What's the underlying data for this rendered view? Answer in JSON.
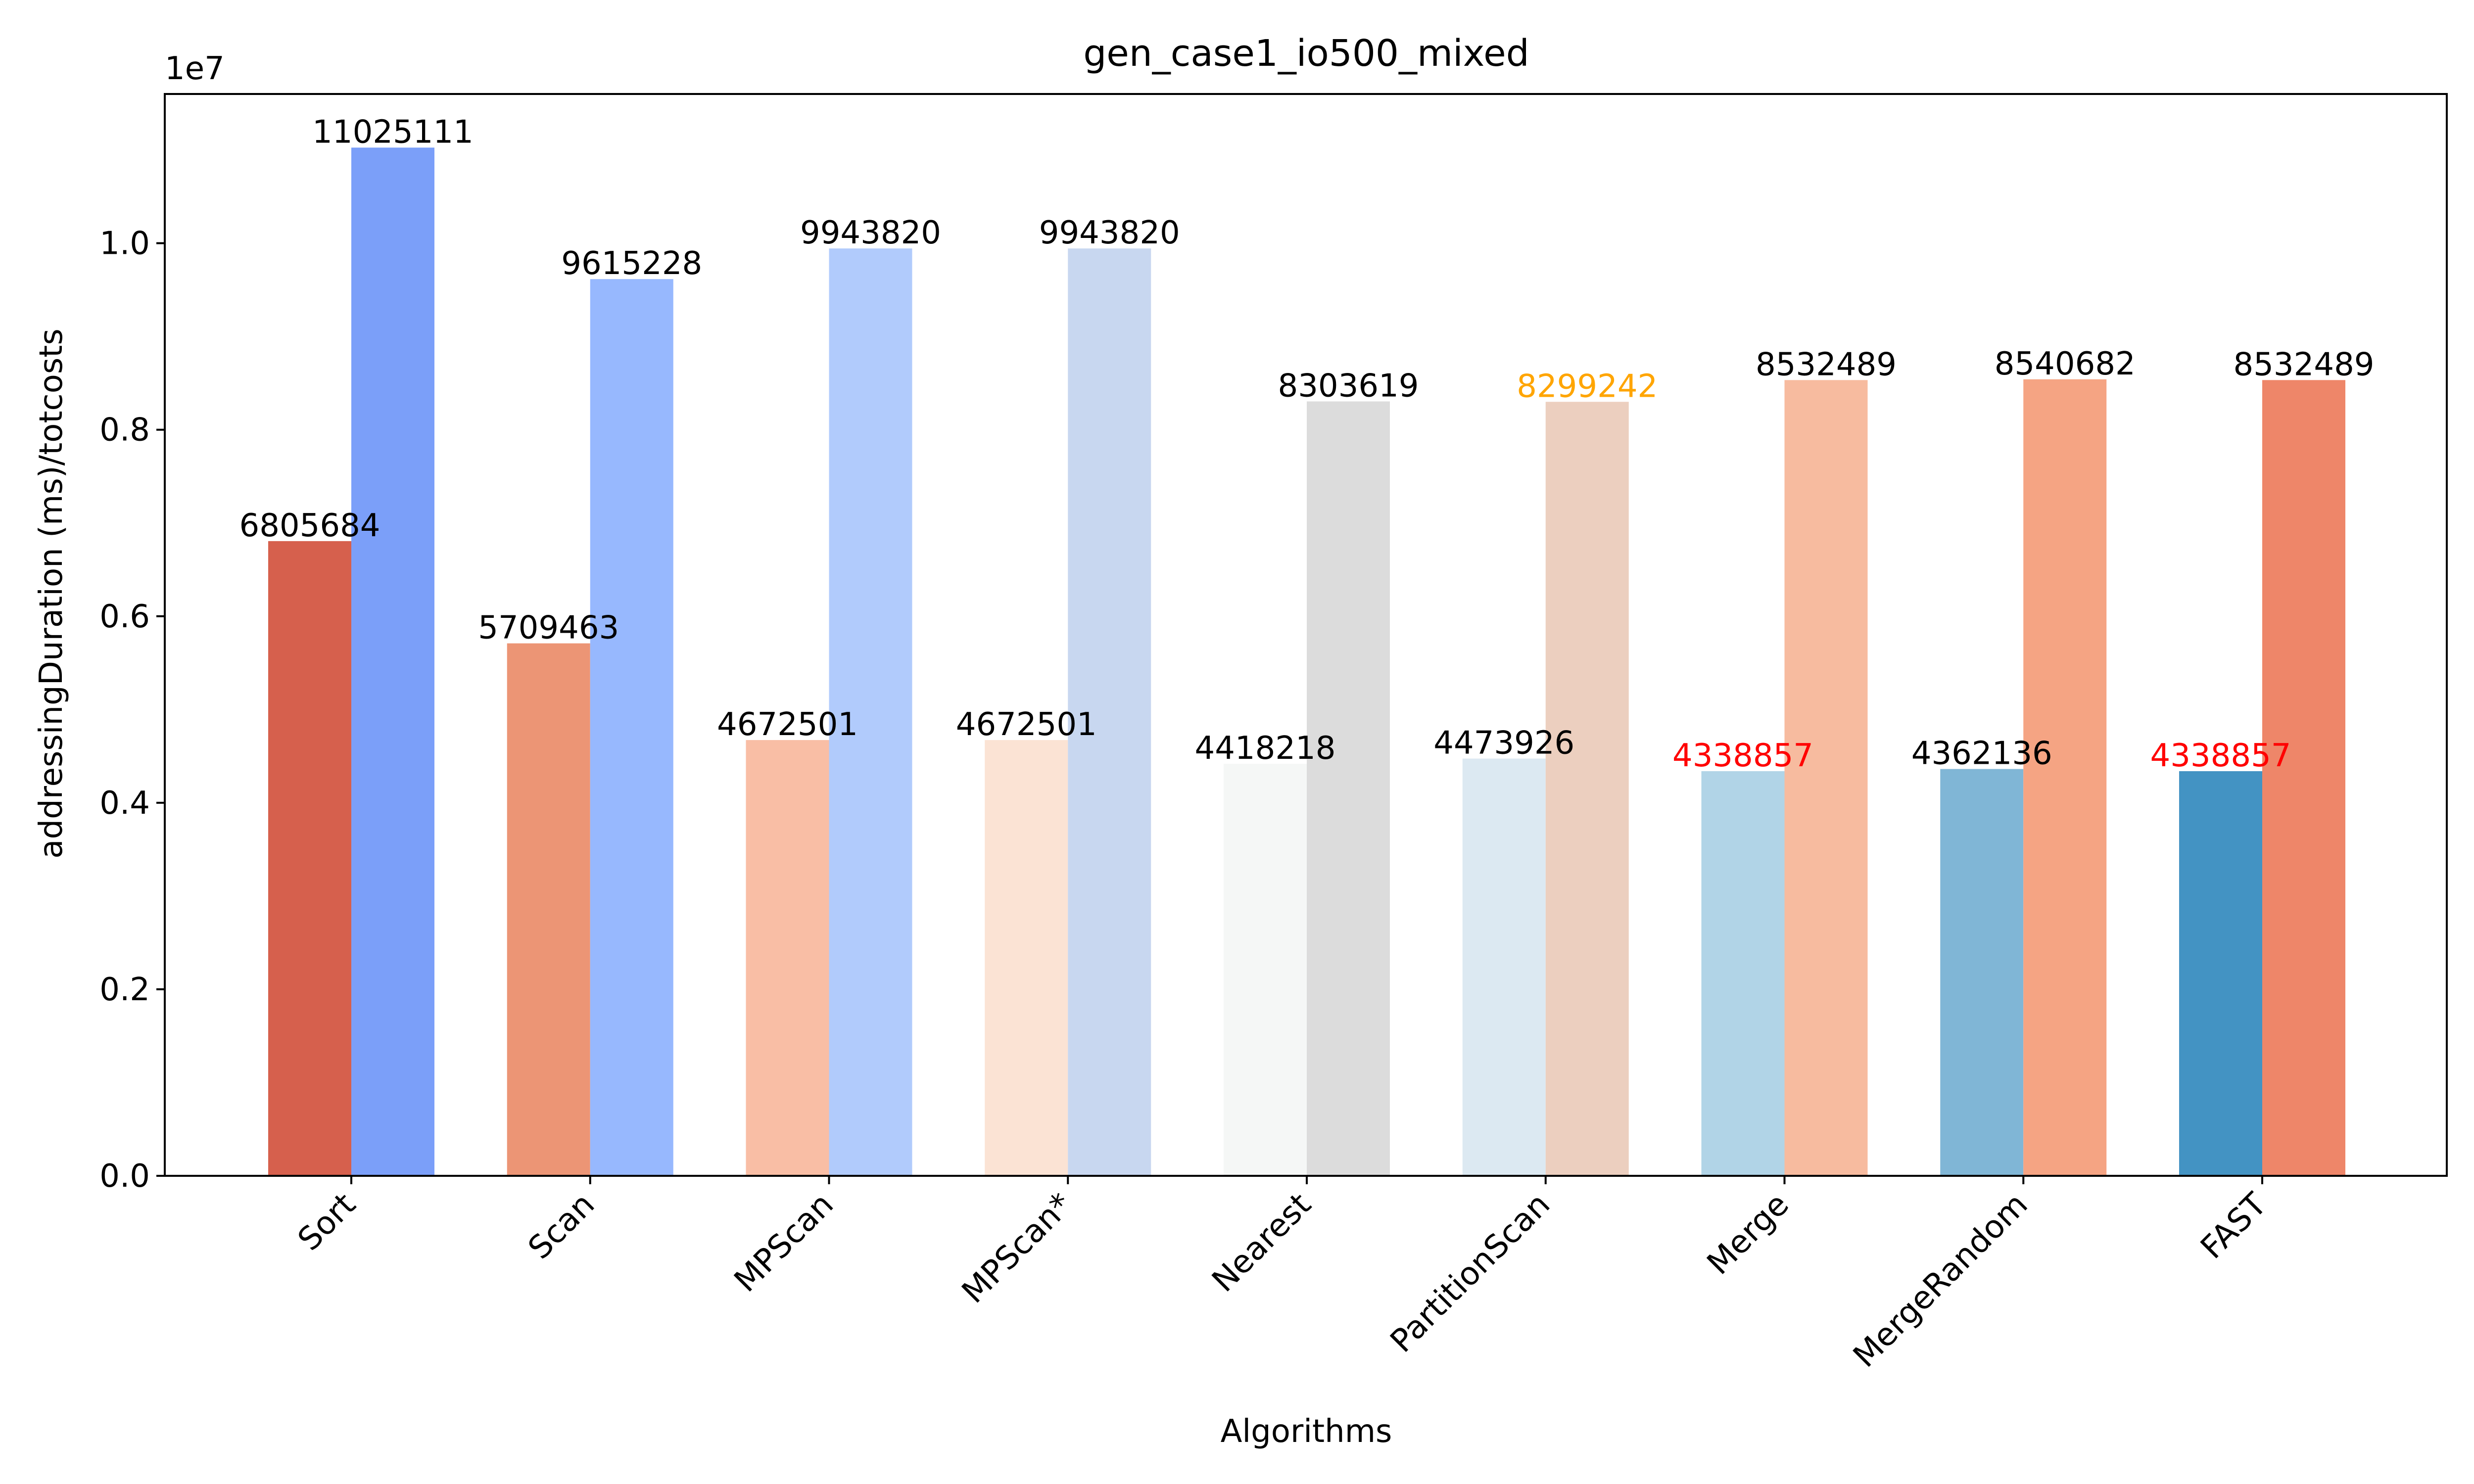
{
  "chart_data": {
    "type": "bar",
    "title": "gen_case1_io500_mixed",
    "xlabel": "Algorithms",
    "ylabel": "addressingDuration (ms)/totcosts",
    "y_scale_label": "1e7",
    "ylim": [
      0,
      11600000
    ],
    "yticks": [
      0,
      2000000,
      4000000,
      6000000,
      8000000,
      10000000
    ],
    "yticklabels": [
      "0.0",
      "0.2",
      "0.4",
      "0.6",
      "0.8",
      "1.0"
    ],
    "grid": false,
    "legend": "none",
    "categories": [
      "Sort",
      "Scan",
      "MPScan",
      "MPScan*",
      "Nearest",
      "PartitionScan",
      "Merge",
      "MergeRandom",
      "FAST"
    ],
    "series": [
      {
        "values": [
          6805684,
          5709463,
          4672501,
          4672501,
          4418218,
          4473926,
          4338857,
          4362136,
          4338857
        ],
        "labels": [
          "6805684",
          "5709463",
          "4672501",
          "4672501",
          "4418218",
          "4473926",
          "4338857",
          "4362136",
          "4338857"
        ],
        "colors": [
          "#d6604d",
          "#ec9575",
          "#f9bea5",
          "#fbe3d4",
          "#f5f7f6",
          "#dce9f2",
          "#b1d4e7",
          "#80b6d6",
          "#4393c3"
        ],
        "label_colors": [
          "#000000",
          "#000000",
          "#000000",
          "#000000",
          "#000000",
          "#000000",
          "#ff0000",
          "#000000",
          "#ff0000"
        ]
      },
      {
        "values": [
          11025111,
          9615228,
          9943820,
          9943820,
          8303619,
          8299242,
          8532489,
          8540682,
          8532489
        ],
        "labels": [
          "11025111",
          "9615228",
          "9943820",
          "9943820",
          "8303619",
          "8299242",
          "8532489",
          "8540682",
          "8532489"
        ],
        "colors": [
          "#7b9ff9",
          "#97b8fe",
          "#b1cbfc",
          "#c8d7f0",
          "#dcdcdc",
          "#eccfbf",
          "#f7bb9f",
          "#f5a483",
          "#ee8669"
        ],
        "label_colors": [
          "#000000",
          "#000000",
          "#000000",
          "#000000",
          "#000000",
          "#ffa500",
          "#000000",
          "#000000",
          "#000000"
        ]
      }
    ]
  }
}
